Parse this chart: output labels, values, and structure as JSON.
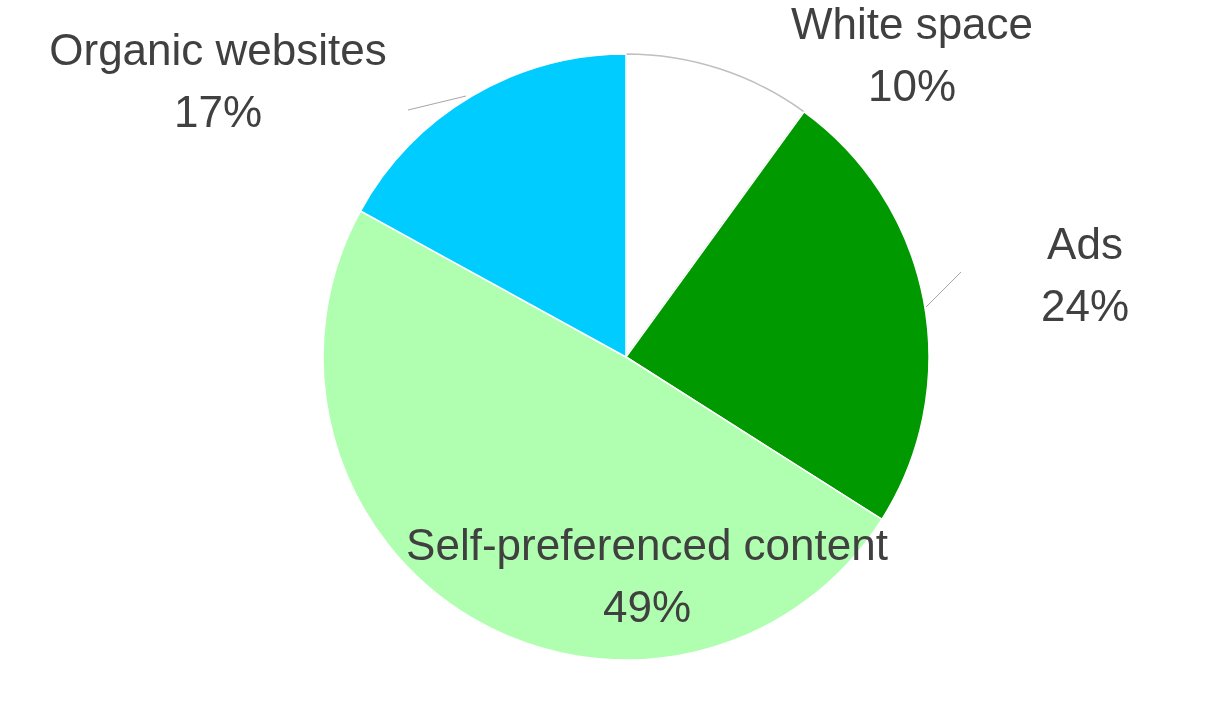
{
  "chart_data": {
    "type": "pie",
    "categories": [
      "White space",
      "Ads",
      "Self-preferenced content",
      "Organic websites"
    ],
    "values": [
      10,
      24,
      49,
      17
    ],
    "colors": [
      "#ffffff",
      "#009900",
      "#b0ffb0",
      "#00ccff"
    ],
    "value_labels": [
      "10%",
      "24%",
      "49%",
      "17%"
    ],
    "legend": false
  }
}
